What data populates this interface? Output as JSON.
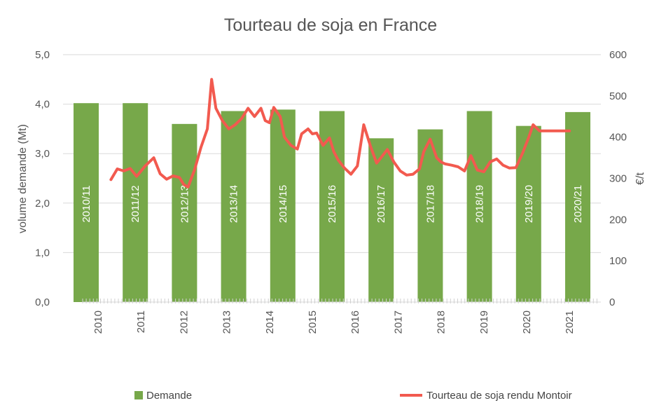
{
  "chart_data": {
    "type": "bar+line",
    "title": "Tourteau de soja en France",
    "ylabel_left": "volume demande (Mt)",
    "ylabel_right": "€/t",
    "ylim_left": [
      0,
      5
    ],
    "ylim_right": [
      0,
      600
    ],
    "y_ticks_left": [
      "0,0",
      "1,0",
      "2,0",
      "3,0",
      "4,0",
      "5,0"
    ],
    "y_ticks_right": [
      "0",
      "100",
      "200",
      "300",
      "400",
      "500",
      "600"
    ],
    "x_year_labels": [
      "2010",
      "2011",
      "2012",
      "2013",
      "2014",
      "2015",
      "2016",
      "2017",
      "2018",
      "2019",
      "2020",
      "2021"
    ],
    "grid": true,
    "legend_position": "bottom",
    "bar_color": "#77a84a",
    "line_color": "#f25a4f",
    "series": [
      {
        "name": "Demande",
        "type": "bar",
        "axis": "left",
        "categories": [
          "2010/11",
          "2011/12",
          "2012/13",
          "2013/14",
          "2014/15",
          "2015/16",
          "2016/17",
          "2017/18",
          "2018/19",
          "2019/20",
          "2020/21"
        ],
        "values": [
          4.02,
          4.02,
          3.6,
          3.86,
          3.89,
          3.86,
          3.31,
          3.49,
          3.86,
          3.56,
          3.84
        ]
      },
      {
        "name": "Tourteau de soja rendu Montoir",
        "type": "line",
        "axis": "right",
        "x": [
          2010.3,
          2010.45,
          2010.6,
          2010.75,
          2010.9,
          2011.1,
          2011.3,
          2011.45,
          2011.6,
          2011.75,
          2011.9,
          2012.0,
          2012.1,
          2012.25,
          2012.4,
          2012.55,
          2012.65,
          2012.75,
          2012.9,
          2013.05,
          2013.2,
          2013.35,
          2013.5,
          2013.65,
          2013.8,
          2013.9,
          2014.0,
          2014.1,
          2014.25,
          2014.35,
          2014.5,
          2014.65,
          2014.75,
          2014.9,
          2015.0,
          2015.1,
          2015.25,
          2015.4,
          2015.5,
          2015.6,
          2015.75,
          2015.9,
          2016.05,
          2016.2,
          2016.35,
          2016.5,
          2016.6,
          2016.75,
          2016.9,
          2017.05,
          2017.2,
          2017.35,
          2017.5,
          2017.6,
          2017.75,
          2017.9,
          2018.0,
          2018.1,
          2018.25,
          2018.4,
          2018.55,
          2018.7,
          2018.85,
          2019.0,
          2019.15,
          2019.3,
          2019.45,
          2019.6,
          2019.75,
          2019.9,
          2020.05,
          2020.15,
          2020.3,
          2020.45,
          2020.6,
          2020.75,
          2020.9,
          2021.0
        ],
        "values": [
          297,
          323,
          318,
          324,
          305,
          330,
          350,
          311,
          298,
          306,
          302,
          285,
          279,
          320,
          375,
          420,
          540,
          470,
          440,
          420,
          430,
          445,
          470,
          450,
          470,
          440,
          435,
          472,
          450,
          400,
          380,
          371,
          408,
          420,
          408,
          410,
          380,
          398,
          365,
          345,
          325,
          310,
          330,
          430,
          380,
          337,
          350,
          370,
          340,
          318,
          308,
          310,
          323,
          365,
          395,
          350,
          340,
          335,
          332,
          328,
          318,
          355,
          320,
          316,
          340,
          347,
          332,
          325,
          326,
          360,
          400,
          430,
          415,
          415,
          415,
          415,
          415,
          415
        ]
      }
    ]
  }
}
